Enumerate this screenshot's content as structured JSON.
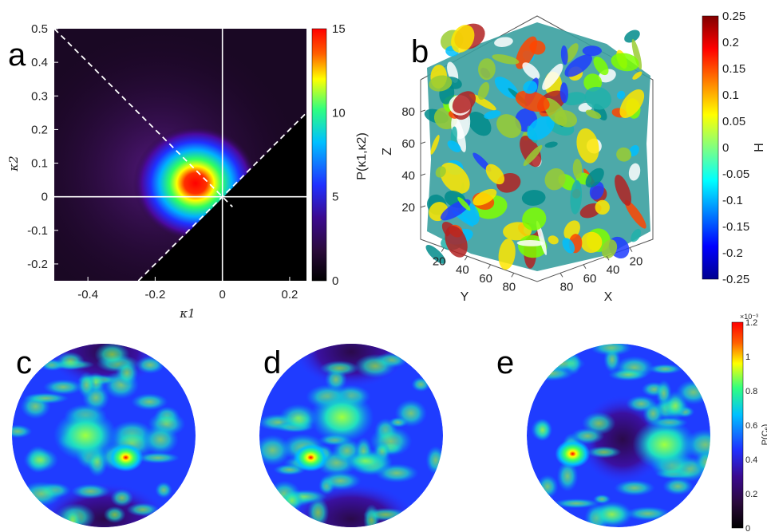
{
  "panels": {
    "a": "a",
    "b": "b",
    "c": "c",
    "d": "d",
    "e": "e"
  },
  "colors": {
    "jet": [
      "#00008f",
      "#0000ff",
      "#0080ff",
      "#00ffff",
      "#80ff80",
      "#ffff00",
      "#ff8000",
      "#ff0000",
      "#800000"
    ],
    "density_map": [
      "#000000",
      "#2a0a3a",
      "#3b0a8f",
      "#2030ff",
      "#00c0ff",
      "#30ff80",
      "#ffff00",
      "#ff6000",
      "#ff0000"
    ],
    "guide_lines": "#ffffff"
  },
  "chart_data": [
    {
      "panel": "a",
      "type": "heatmap",
      "xlabel": "κ1",
      "ylabel": "κ2",
      "xlim": [
        -0.5,
        0.25
      ],
      "ylim": [
        -0.25,
        0.5
      ],
      "xticks": [
        "-0.4",
        "-0.2",
        "0",
        "0.2"
      ],
      "yticks": [
        "-0.2",
        "-0.1",
        "0",
        "0.1",
        "0.2",
        "0.3",
        "0.4",
        "0.5"
      ],
      "colorbar": {
        "label": "P(κ1,κ2)",
        "range": [
          0,
          15
        ],
        "ticks": [
          "0",
          "5",
          "10",
          "15"
        ]
      },
      "peak": {
        "x": -0.08,
        "y": 0.04,
        "value": 15
      },
      "guides": [
        {
          "kind": "solid",
          "equation": "x = 0"
        },
        {
          "kind": "solid",
          "equation": "y = 0"
        },
        {
          "kind": "dashed",
          "equation": "y = -x"
        },
        {
          "kind": "dashed",
          "equation": "y = x"
        }
      ]
    },
    {
      "panel": "b",
      "type": "surface-3d",
      "axes": {
        "z": {
          "label": "Z",
          "ticks": [
            "20",
            "40",
            "60",
            "80"
          ]
        },
        "y": {
          "label": "Y",
          "ticks": [
            "20",
            "40",
            "60",
            "80"
          ]
        },
        "x": {
          "label": "X",
          "ticks": [
            "20",
            "40",
            "60",
            "80"
          ]
        }
      },
      "colorbar": {
        "label": "H",
        "range": [
          -0.25,
          0.25
        ],
        "ticks": [
          "0.25",
          "0.2",
          "0.15",
          "0.1",
          "0.05",
          "0",
          "-0.05",
          "-0.1",
          "-0.15",
          "-0.2",
          "-0.25"
        ]
      }
    },
    {
      "panel": "c-e",
      "type": "heatmap",
      "projection": "polar-disk",
      "maps": [
        {
          "panel": "c",
          "hotspots": [
            [
              0.62,
              0.62
            ],
            [
              0.4,
              0.5
            ]
          ]
        },
        {
          "panel": "d",
          "hotspots": [
            [
              0.28,
              0.62
            ],
            [
              0.45,
              0.4
            ]
          ]
        },
        {
          "panel": "e",
          "hotspots": [
            [
              0.25,
              0.6
            ],
            [
              0.75,
              0.55
            ]
          ]
        }
      ],
      "colorbar": {
        "label": "P(Cₑ)",
        "exponent": "×10⁻³",
        "range": [
          0,
          1.2
        ],
        "ticks": [
          "0",
          "0.2",
          "0.4",
          "0.6",
          "0.8",
          "1",
          "1.2"
        ]
      }
    }
  ]
}
